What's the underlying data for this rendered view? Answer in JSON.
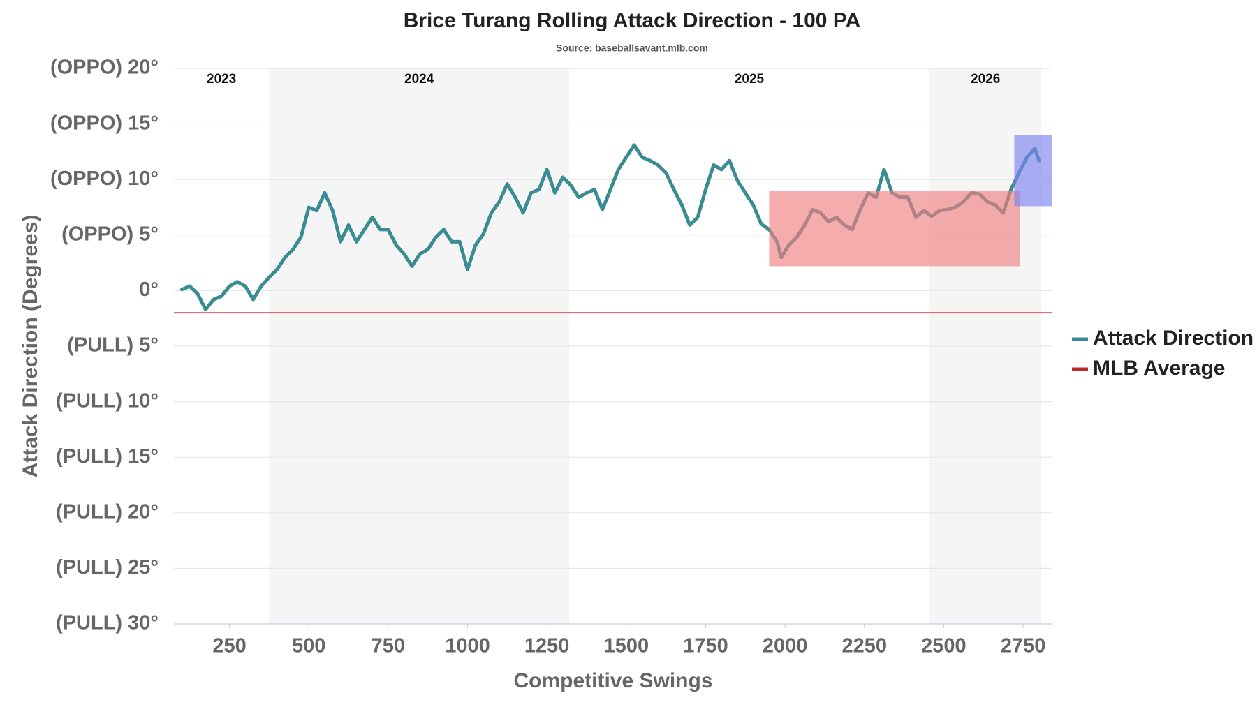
{
  "chart_data": {
    "type": "line",
    "title": "Brice Turang Rolling Attack Direction - 100 PA",
    "subtitle": "Source: baseballsavant.mlb.com",
    "x_label": "Competitive Swings",
    "y_label": "Attack Direction (Degrees)",
    "xlim": [
      75,
      2840
    ],
    "xticks": [
      250,
      500,
      750,
      1000,
      1250,
      1500,
      1750,
      2000,
      2250,
      2500,
      2750
    ],
    "ylim": [
      -30,
      20
    ],
    "yticks": [
      {
        "value": 20,
        "label": "(OPPO) 20°"
      },
      {
        "value": 15,
        "label": "(OPPO) 15°"
      },
      {
        "value": 10,
        "label": "(OPPO) 10°"
      },
      {
        "value": 5,
        "label": "(OPPO) 5°"
      },
      {
        "value": 0,
        "label": "0°"
      },
      {
        "value": -5,
        "label": "(PULL) 5°"
      },
      {
        "value": -10,
        "label": "(PULL) 10°"
      },
      {
        "value": -15,
        "label": "(PULL) 15°"
      },
      {
        "value": -20,
        "label": "(PULL) 20°"
      },
      {
        "value": -25,
        "label": "(PULL) 25°"
      },
      {
        "value": -30,
        "label": "(PULL) 30°"
      }
    ],
    "grid": true,
    "shade_color": "#f5f5f5",
    "seasons": [
      {
        "label": "2023",
        "range": [
          75,
          375
        ],
        "shaded": false
      },
      {
        "label": "2024",
        "range": [
          375,
          1320
        ],
        "shaded": true
      },
      {
        "label": "2025",
        "range": [
          1320,
          2455
        ],
        "shaded": false
      },
      {
        "label": "2026",
        "range": [
          2455,
          2808
        ],
        "shaded": true
      }
    ],
    "x": [
      100,
      125,
      150,
      175,
      200,
      225,
      250,
      275,
      300,
      325,
      350,
      375,
      400,
      425,
      450,
      475,
      500,
      525,
      550,
      575,
      600,
      625,
      650,
      675,
      700,
      725,
      750,
      775,
      800,
      825,
      850,
      875,
      900,
      925,
      950,
      975,
      1000,
      1025,
      1050,
      1075,
      1100,
      1125,
      1150,
      1175,
      1200,
      1225,
      1250,
      1275,
      1300,
      1325,
      1350,
      1375,
      1400,
      1425,
      1450,
      1475,
      1500,
      1525,
      1550,
      1575,
      1600,
      1625,
      1650,
      1675,
      1700,
      1725,
      1750,
      1775,
      1800,
      1825,
      1850,
      1875,
      1900,
      1925,
      1950,
      1975,
      1988,
      2012,
      2037,
      2062,
      2087,
      2112,
      2137,
      2162,
      2187,
      2212,
      2237,
      2262,
      2287,
      2312,
      2337,
      2362,
      2387,
      2412,
      2437,
      2462,
      2487,
      2512,
      2537,
      2562,
      2587,
      2612,
      2637,
      2662,
      2687,
      2712,
      2737,
      2762,
      2787,
      2800
    ],
    "series": [
      {
        "name": "Attack Direction",
        "color": "#3a8c93",
        "values": [
          0.1,
          0.4,
          -0.3,
          -1.7,
          -0.8,
          -0.5,
          0.4,
          0.8,
          0.4,
          -0.8,
          0.4,
          1.2,
          1.9,
          3,
          3.7,
          4.8,
          7.5,
          7.2,
          8.8,
          7.2,
          4.4,
          5.9,
          4.4,
          5.5,
          6.6,
          5.5,
          5.5,
          4.1,
          3.3,
          2.2,
          3.3,
          3.7,
          4.8,
          5.5,
          4.4,
          4.4,
          1.9,
          4.1,
          5.1,
          7,
          8,
          9.6,
          8.4,
          7,
          8.8,
          9.1,
          10.9,
          8.8,
          10.2,
          9.5,
          8.4,
          8.8,
          9.1,
          7.3,
          9.1,
          10.9,
          12,
          13.1,
          12,
          11.7,
          11.3,
          10.6,
          9.1,
          7.7,
          5.9,
          6.6,
          9.1,
          11.3,
          10.9,
          11.7,
          9.9,
          8.8,
          7.7,
          6,
          5.5,
          4.4,
          3,
          4.1,
          4.8,
          5.9,
          7.3,
          7,
          6.2,
          6.6,
          5.9,
          5.5,
          7.3,
          8.8,
          8.4,
          10.9,
          8.8,
          8.4,
          8.4,
          6.6,
          7.2,
          6.7,
          7.2,
          7.3,
          7.5,
          8,
          8.8,
          8.7,
          8,
          7.7,
          7,
          9.1,
          10.6,
          12,
          12.8,
          11.7
        ]
      }
    ],
    "reference_line": {
      "name": "MLB Average",
      "value": -2,
      "color": "#c0282d"
    },
    "highlights": [
      {
        "x_range": [
          1950,
          2740
        ],
        "y_range": [
          2.2,
          9
        ],
        "color": "#f08080"
      },
      {
        "x_range": [
          2722,
          2840
        ],
        "y_range": [
          7.6,
          14
        ],
        "color": "#7b83f0"
      }
    ]
  }
}
